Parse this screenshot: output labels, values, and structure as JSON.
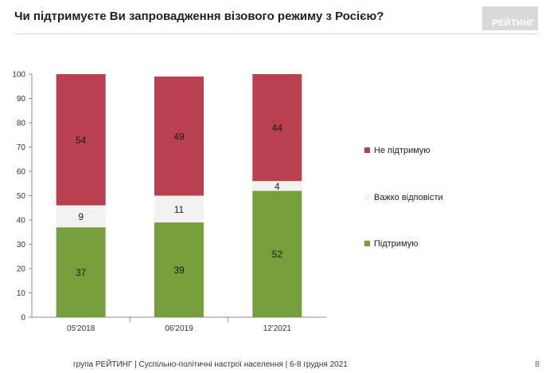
{
  "header": {
    "title": "Чи підтримуєте Ви запровадження візового режиму з Росією?",
    "logo_text": "РЕЙТИНГ"
  },
  "footer": {
    "text": "група РЕЙТИНГ | Суспільно-політичні настрої населення  | 6-8 грудня 2021",
    "page_number": "8"
  },
  "colors": {
    "support": "#779e3d",
    "hard_to_say": "#f2f2f2",
    "not_support": "#b8404f"
  },
  "chart_data": {
    "type": "bar",
    "stacked": true,
    "categories": [
      "05'2018",
      "06'2019",
      "12'2021"
    ],
    "series": [
      {
        "name": "Підтримую",
        "values": [
          37,
          39,
          52
        ],
        "color": "#779e3d"
      },
      {
        "name": "Важко відповісти",
        "values": [
          9,
          11,
          4
        ],
        "color": "#f2f2f2"
      },
      {
        "name": "Не підтримую",
        "values": [
          54,
          49,
          44
        ],
        "color": "#b8404f"
      }
    ],
    "ylim": [
      0,
      100
    ],
    "yticks": [
      0,
      10,
      20,
      30,
      40,
      50,
      60,
      70,
      80,
      90,
      100
    ],
    "legend_order": [
      "Не підтримую",
      "Важко відповісти",
      "Підтримую"
    ],
    "legend_position": "right",
    "grid": false
  }
}
